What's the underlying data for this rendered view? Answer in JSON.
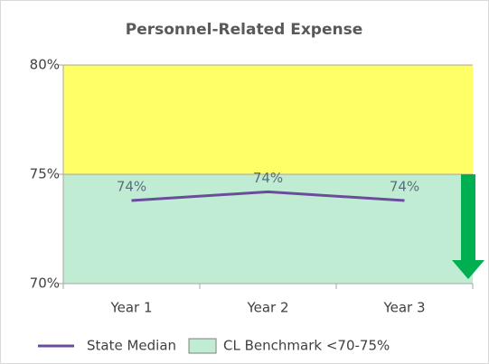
{
  "chart_data": {
    "type": "line",
    "title": "Personnel-Related Expense",
    "categories": [
      "Year 1",
      "Year 2",
      "Year 3"
    ],
    "series": [
      {
        "name": "State Median",
        "color": "#6a4c9c",
        "values": [
          73.8,
          74.2,
          73.8
        ],
        "value_labels": [
          "74%",
          "74%",
          "74%"
        ]
      }
    ],
    "bands": [
      {
        "from": 75,
        "to": 80,
        "color": "#ffff66"
      },
      {
        "name": "CL Benchmark <70-75%",
        "from": 70,
        "to": 75,
        "color": "#c0ecd3"
      }
    ],
    "ylim": [
      70,
      80
    ],
    "yticks": [
      {
        "value": 70,
        "label": "70%"
      },
      {
        "value": 75,
        "label": "75%"
      },
      {
        "value": 80,
        "label": "80%"
      }
    ]
  }
}
